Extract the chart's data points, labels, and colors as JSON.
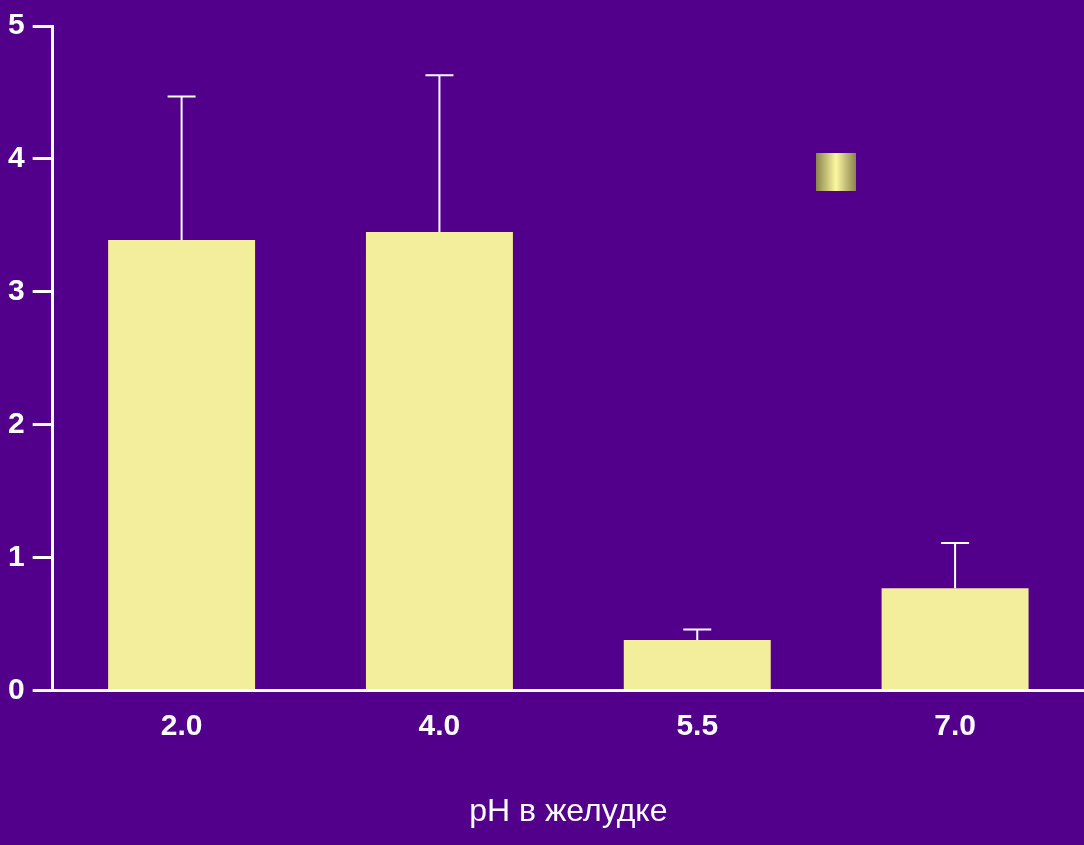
{
  "chart_data": {
    "type": "bar",
    "xlabel": "pH в желудке",
    "categories": [
      "2.0",
      "4.0",
      "5.5",
      "7.0"
    ],
    "values": [
      3.39,
      3.45,
      0.38,
      0.77
    ],
    "errors": [
      [
        3.39,
        4.47
      ],
      [
        3.45,
        4.63
      ],
      [
        0.38,
        0.46
      ],
      [
        0.77,
        1.11
      ]
    ],
    "color": "#f2ee9c",
    "ylim": [
      0,
      5
    ],
    "yticks": [
      0,
      1,
      2,
      3,
      4,
      5
    ],
    "grid": false
  }
}
